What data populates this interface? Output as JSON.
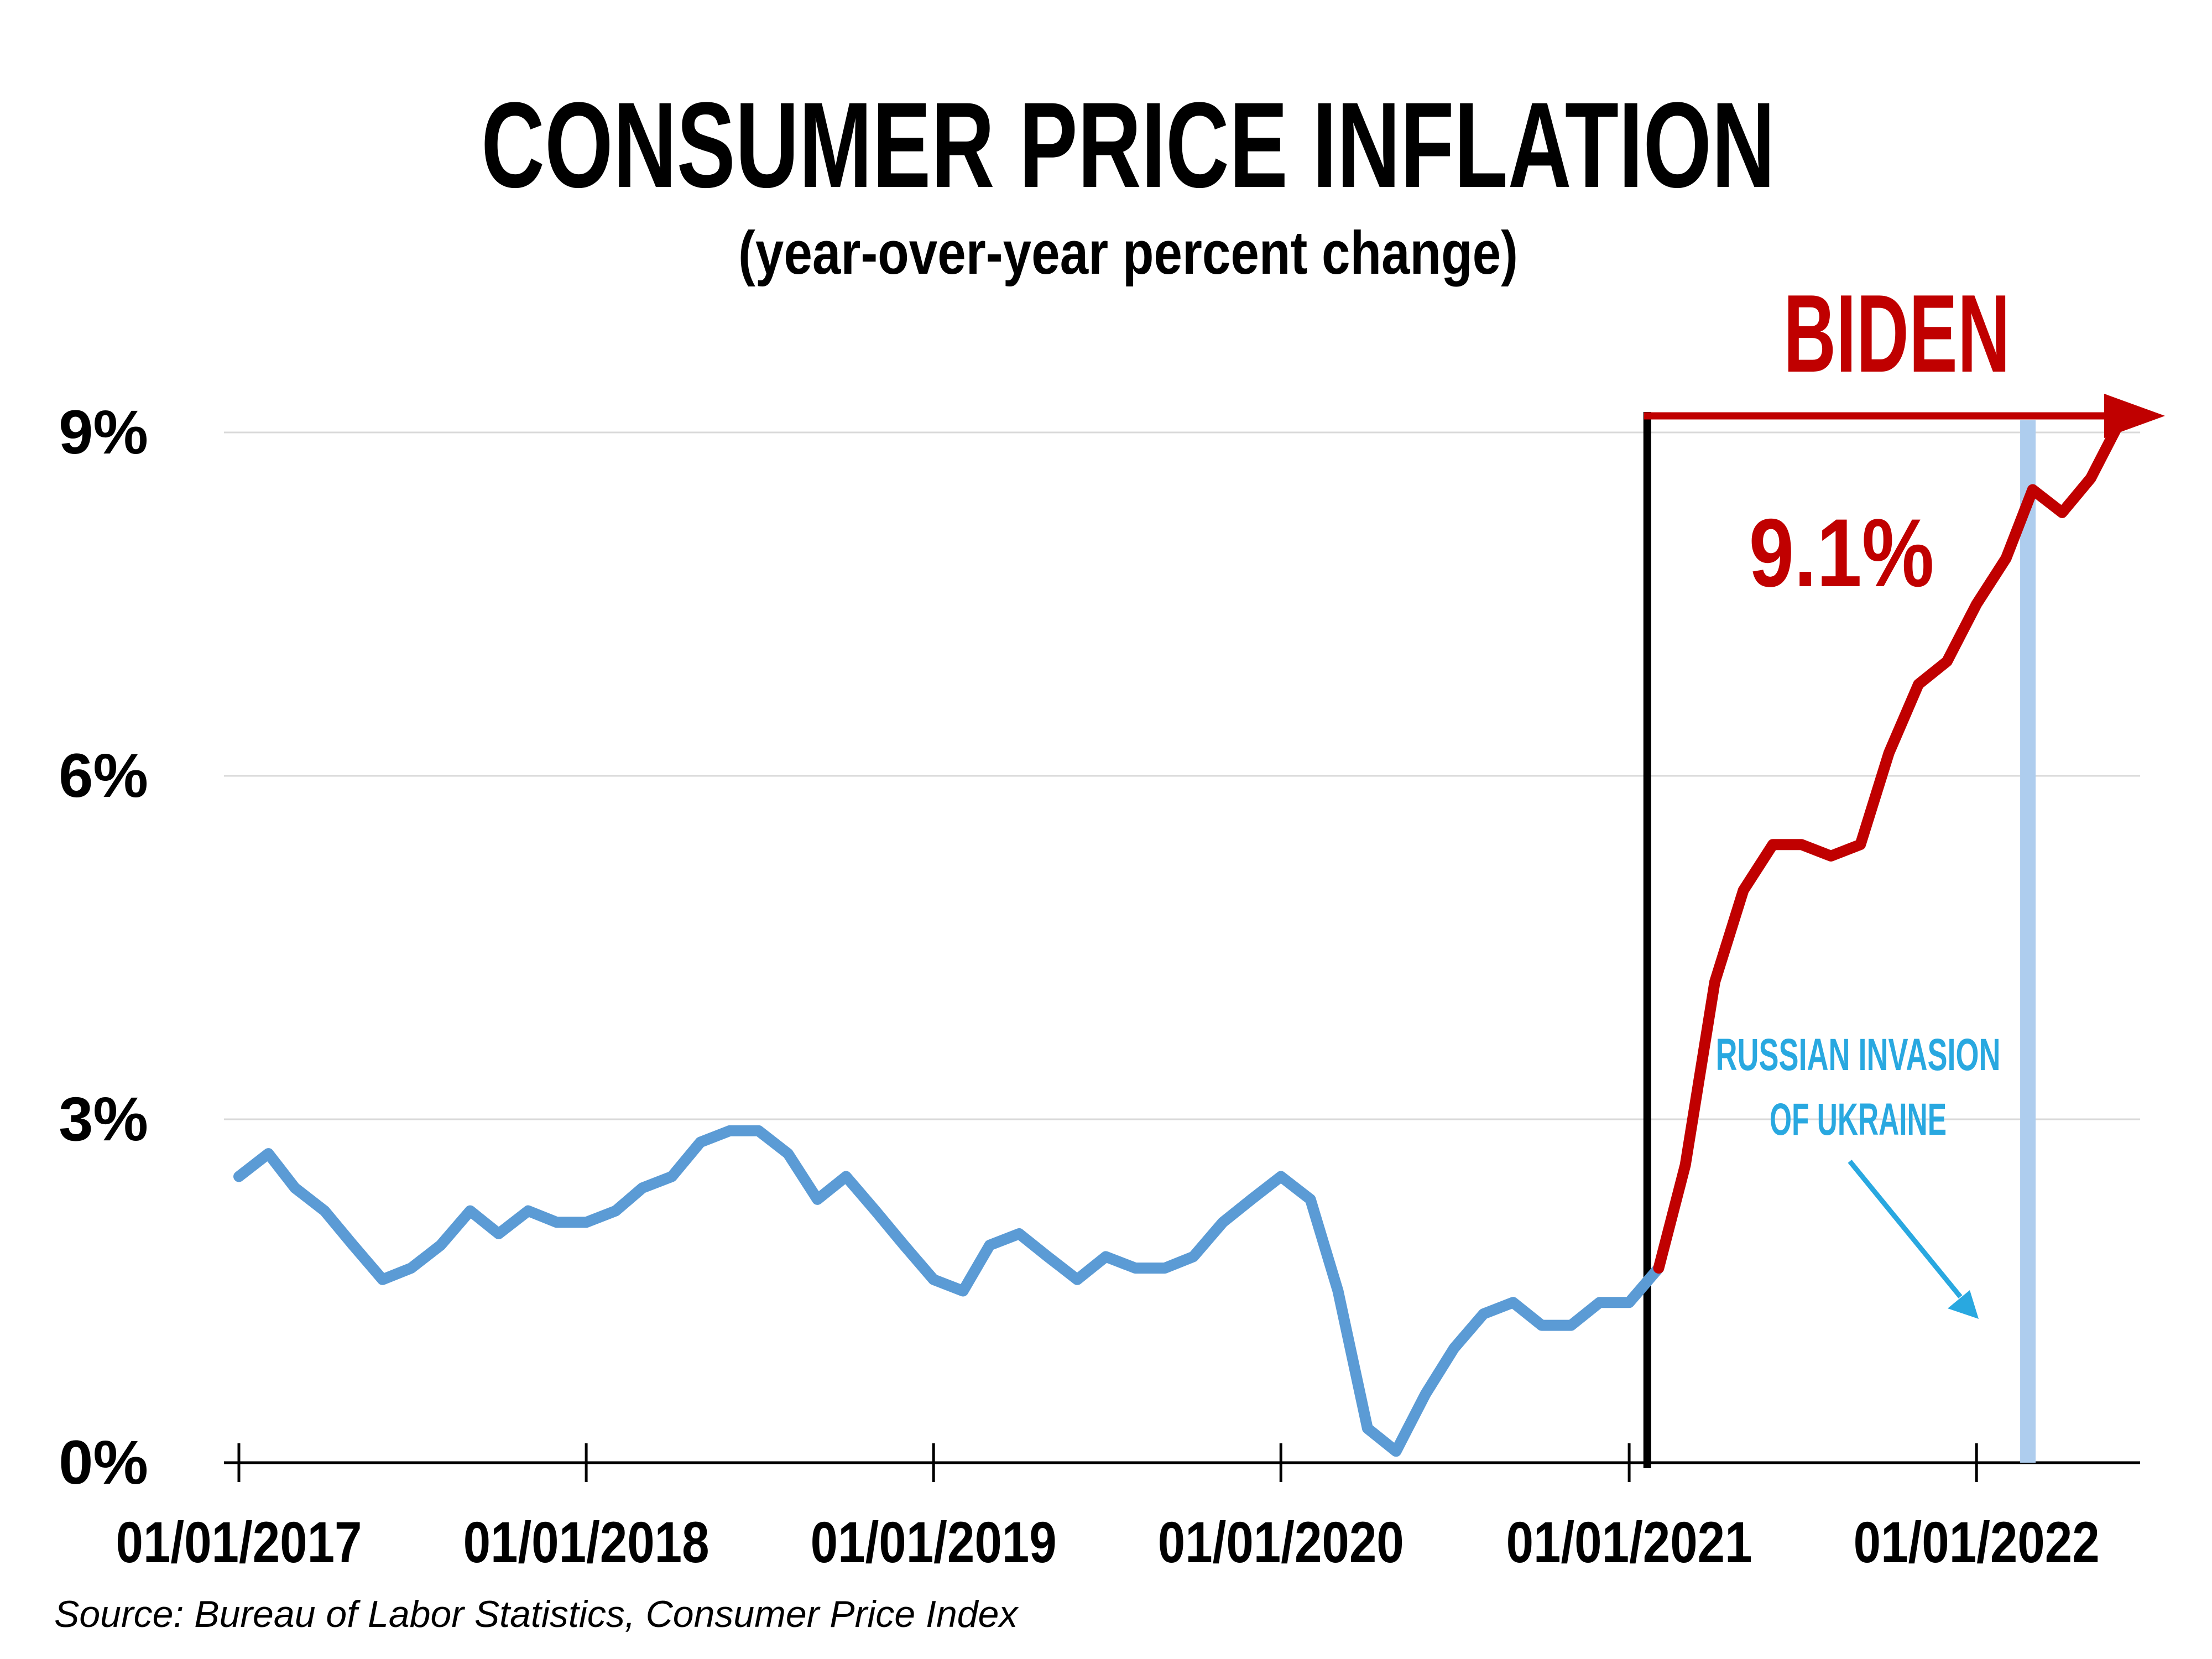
{
  "chart_data": {
    "type": "line",
    "title": "CONSUMER PRICE INFLATION",
    "subtitle": "(year-over-year percent change)",
    "xlabel": "",
    "ylabel": "",
    "x_tick_labels": [
      "01/01/2017",
      "01/01/2018",
      "01/01/2019",
      "01/01/2020",
      "01/01/2021",
      "01/01/2022"
    ],
    "y_tick_labels": [
      "0%",
      "3%",
      "6%",
      "9%"
    ],
    "y_ticks": [
      0,
      3,
      6,
      9
    ],
    "ylim": [
      0,
      9.5
    ],
    "xlim": [
      "2017-01-01",
      "2022-06-01"
    ],
    "grid": true,
    "series": [
      {
        "name": "",
        "color": "#5b9bd5",
        "x": [
          "2017-01-01",
          "2017-02-01",
          "2017-03-01",
          "2017-04-01",
          "2017-05-01",
          "2017-06-01",
          "2017-07-01",
          "2017-08-01",
          "2017-09-01",
          "2017-10-01",
          "2017-11-01",
          "2017-12-01",
          "2018-01-01",
          "2018-02-01",
          "2018-03-01",
          "2018-04-01",
          "2018-05-01",
          "2018-06-01",
          "2018-07-01",
          "2018-08-01",
          "2018-09-01",
          "2018-10-01",
          "2018-11-01",
          "2018-12-01",
          "2019-01-01",
          "2019-02-01",
          "2019-03-01",
          "2019-04-01",
          "2019-05-01",
          "2019-06-01",
          "2019-07-01",
          "2019-08-01",
          "2019-09-01",
          "2019-10-01",
          "2019-11-01",
          "2019-12-01",
          "2020-01-01",
          "2020-02-01",
          "2020-03-01",
          "2020-04-01",
          "2020-05-01",
          "2020-06-01",
          "2020-07-01",
          "2020-08-01",
          "2020-09-01",
          "2020-10-01",
          "2020-11-01",
          "2020-12-01",
          "2021-01-01",
          "2021-02-01"
        ],
        "values": [
          2.5,
          2.7,
          2.4,
          2.2,
          1.9,
          1.6,
          1.7,
          1.9,
          2.2,
          2.0,
          2.2,
          2.1,
          2.1,
          2.2,
          2.4,
          2.5,
          2.8,
          2.9,
          2.9,
          2.7,
          2.3,
          2.5,
          2.2,
          1.9,
          1.6,
          1.5,
          1.9,
          2.0,
          1.8,
          1.6,
          1.8,
          1.7,
          1.7,
          1.8,
          2.1,
          2.3,
          2.5,
          2.3,
          1.5,
          0.3,
          0.1,
          0.6,
          1.0,
          1.3,
          1.4,
          1.2,
          1.2,
          1.4,
          1.4,
          1.7
        ]
      },
      {
        "name": "",
        "color": "#c00000",
        "x": [
          "2021-02-01",
          "2021-03-01",
          "2021-04-01",
          "2021-05-01",
          "2021-06-01",
          "2021-07-01",
          "2021-08-01",
          "2021-09-01",
          "2021-10-01",
          "2021-11-01",
          "2021-12-01",
          "2022-01-01",
          "2022-02-01",
          "2022-03-01",
          "2022-04-01",
          "2022-05-01",
          "2022-06-01"
        ],
        "values": [
          1.7,
          2.6,
          4.2,
          5.0,
          5.4,
          5.4,
          5.3,
          5.4,
          6.2,
          6.8,
          7.0,
          7.5,
          7.9,
          8.5,
          8.3,
          8.6,
          9.1
        ]
      }
    ],
    "annotations": {
      "period_label": "BIDEN",
      "period_start": "2021-01-20",
      "period_color": "#c00000",
      "peak_label": "9.1%",
      "event_label_line1": "RUSSIAN INVASION",
      "event_label_line2": "OF UKRAINE",
      "event_date": "2022-02-24",
      "event_color": "#29a8e0",
      "event_band_color": "#aecdee"
    },
    "source": "Source: Bureau of Labor Statistics, Consumer Price Index"
  }
}
